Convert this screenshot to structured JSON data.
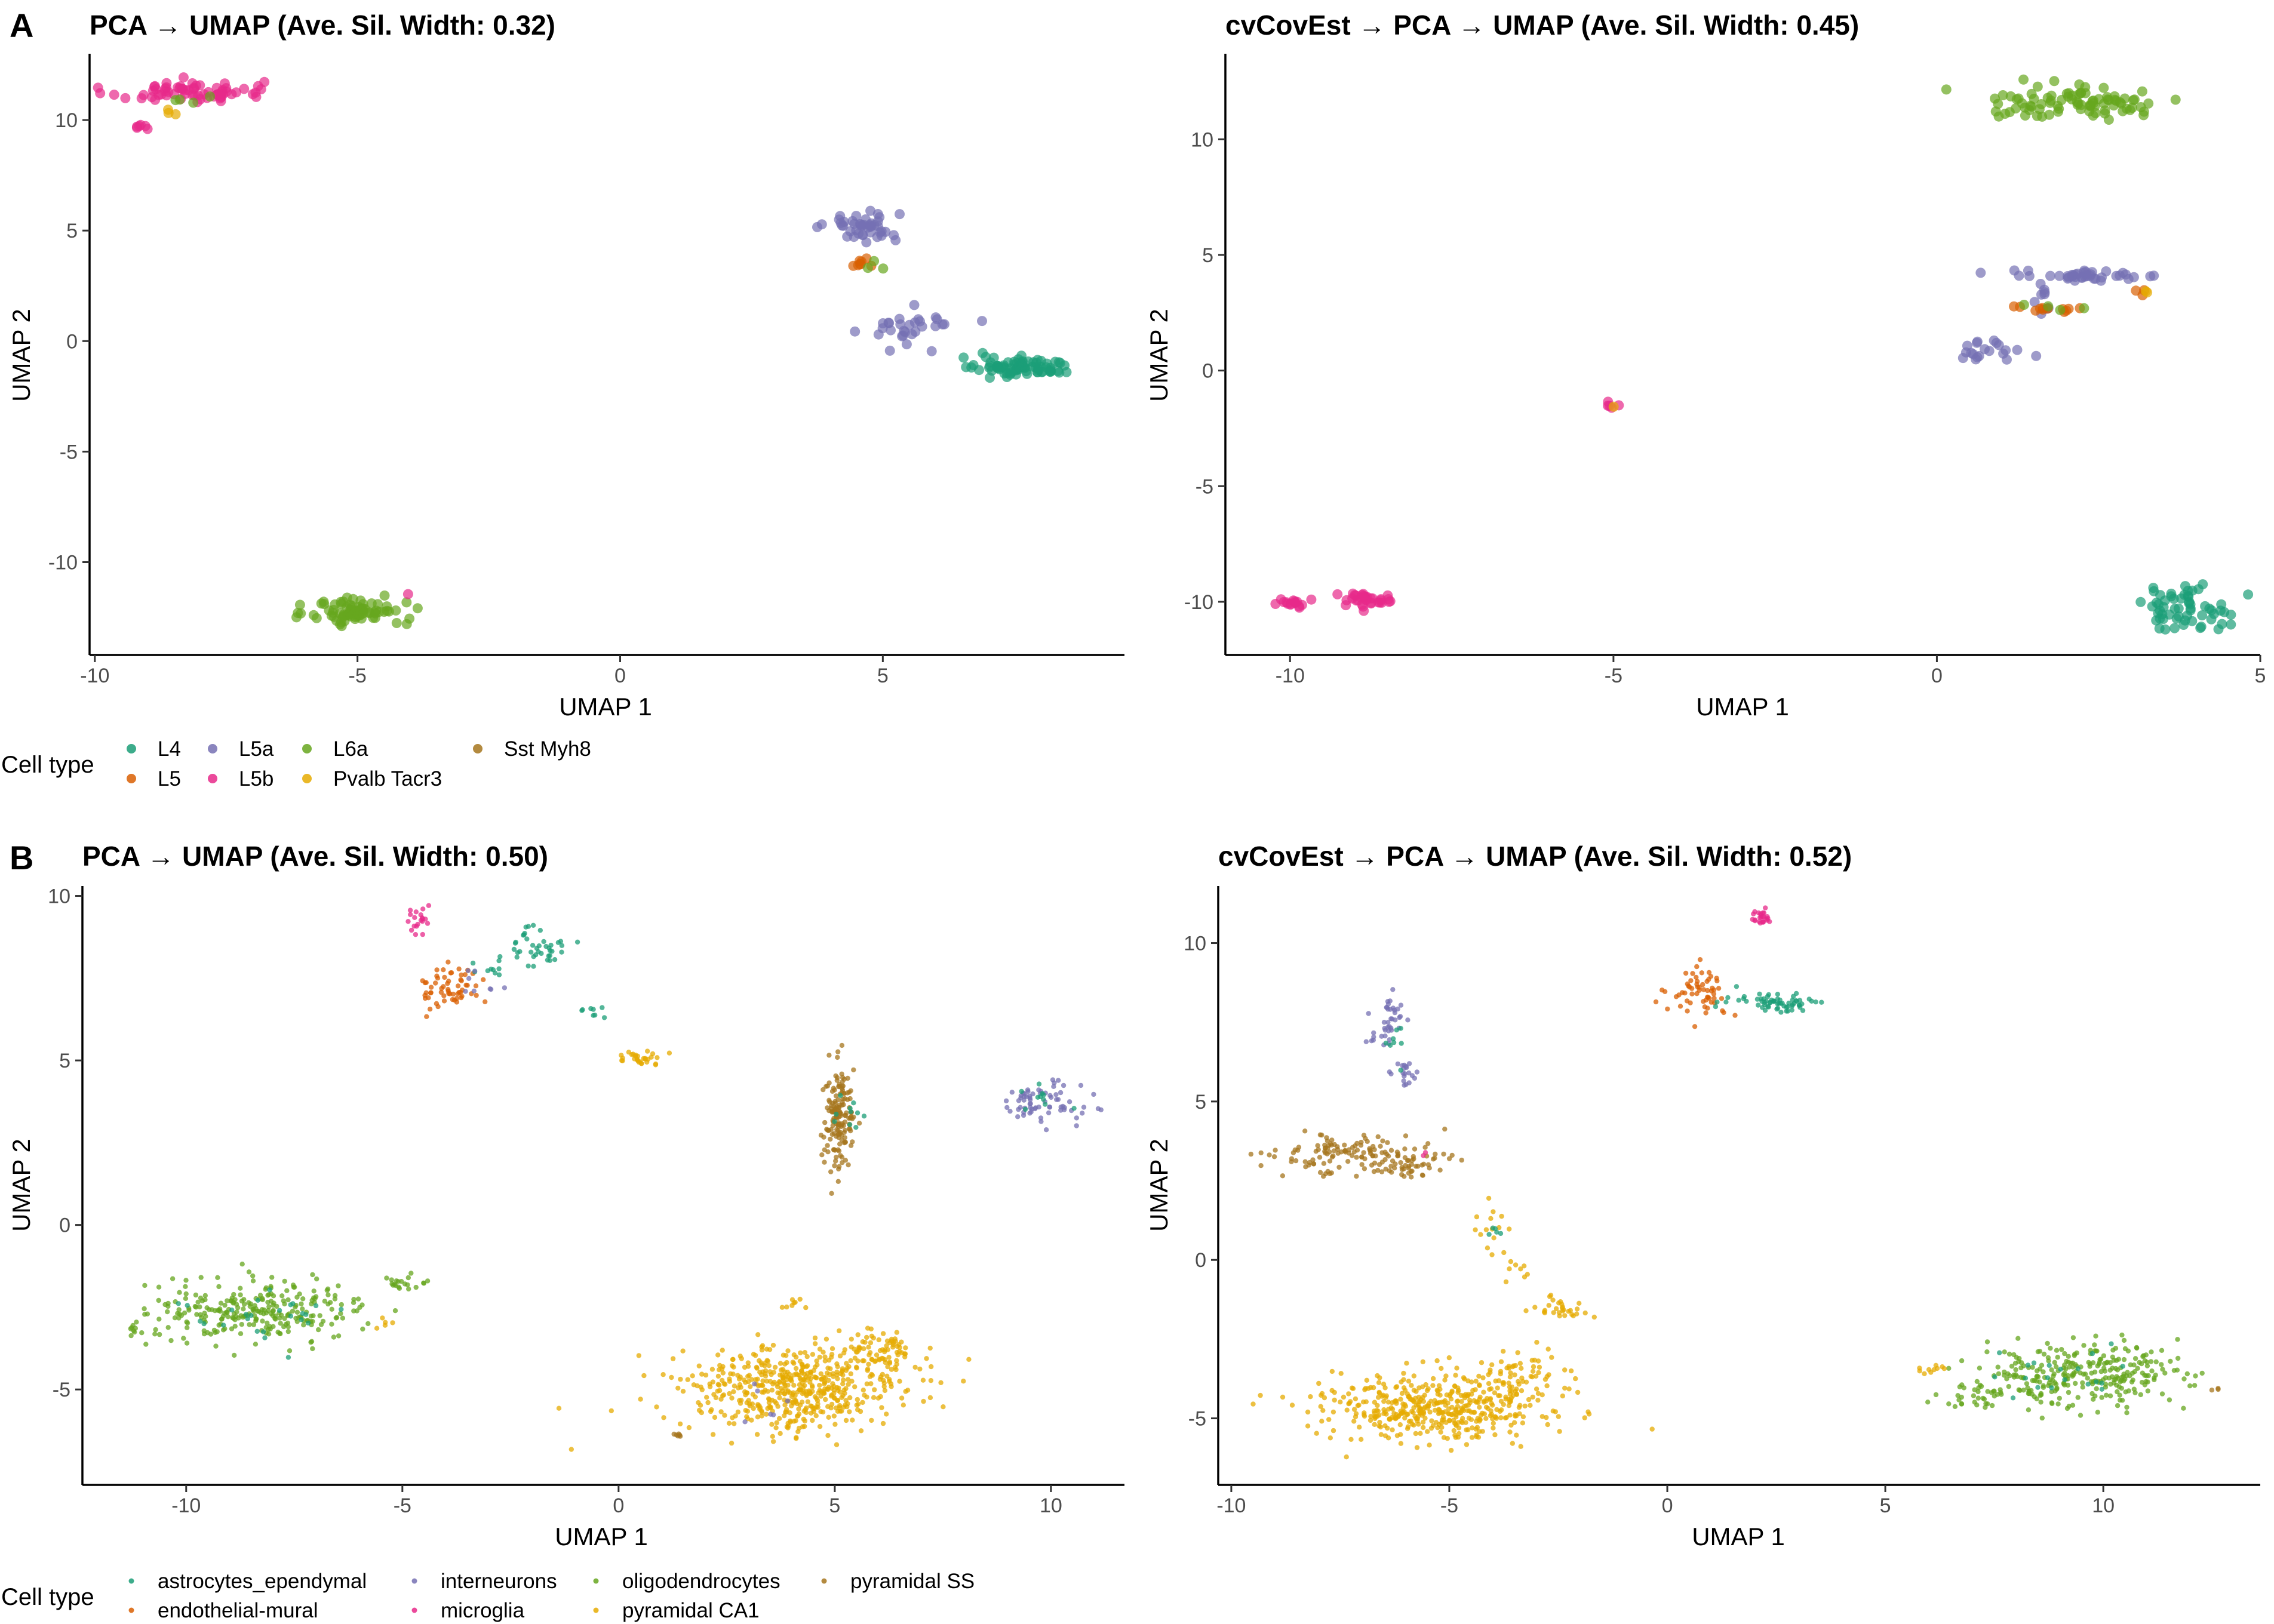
{
  "panels": [
    {
      "letter": "A",
      "legend_title": "Cell type",
      "legend": [
        {
          "label": "L4",
          "color": "#1B9E77"
        },
        {
          "label": "L5",
          "color": "#D95F02"
        },
        {
          "label": "L5a",
          "color": "#7570B3"
        },
        {
          "label": "L5b",
          "color": "#E7298A"
        },
        {
          "label": "L6a",
          "color": "#66A61E"
        },
        {
          "label": "Pvalb Tacr3",
          "color": "#E6AB02"
        },
        {
          "label": "Sst Myh8",
          "color": "#A6761D"
        }
      ]
    },
    {
      "letter": "B",
      "legend_title": "Cell type",
      "legend": [
        {
          "label": "astrocytes_ependymal",
          "color": "#1B9E77"
        },
        {
          "label": "endothelial-mural",
          "color": "#D95F02"
        },
        {
          "label": "interneurons",
          "color": "#7570B3"
        },
        {
          "label": "microglia",
          "color": "#E7298A"
        },
        {
          "label": "oligodendrocytes",
          "color": "#66A61E"
        },
        {
          "label": "pyramidal CA1",
          "color": "#E6AB02"
        },
        {
          "label": "pyramidal SS",
          "color": "#A6761D"
        }
      ]
    }
  ],
  "chart_data": [
    {
      "type": "scatter",
      "panel": "A",
      "title": "PCA → UMAP (Ave. Sil. Width: 0.32)",
      "xlabel": "UMAP 1",
      "ylabel": "UMAP 2",
      "xlim": [
        -10.1,
        9.6
      ],
      "ylim": [
        -14.2,
        13.0
      ],
      "xticks": [
        -10,
        -5,
        0,
        5
      ],
      "yticks": [
        10,
        5,
        0,
        -5,
        -10
      ],
      "xtick_labels": [
        "-10",
        "-5",
        "0",
        "5"
      ],
      "ytick_labels": [
        "10",
        "5",
        "0",
        "-5",
        "-10"
      ],
      "clusters": [
        {
          "type_index": 3,
          "cx": -8.3,
          "cy": 11.3,
          "sx": 0.75,
          "sy": 0.25,
          "n": 70
        },
        {
          "type_index": 3,
          "cx": -9.1,
          "cy": 9.7,
          "sx": 0.08,
          "sy": 0.1,
          "n": 6
        },
        {
          "type_index": 5,
          "cx": -8.6,
          "cy": 10.4,
          "sx": 0.12,
          "sy": 0.1,
          "n": 3
        },
        {
          "type_index": 4,
          "cx": -8.2,
          "cy": 10.9,
          "sx": 0.3,
          "sy": 0.15,
          "n": 4
        },
        {
          "type_index": 2,
          "cx": 4.6,
          "cy": 5.2,
          "sx": 0.35,
          "sy": 0.35,
          "n": 45
        },
        {
          "type_index": 1,
          "cx": 4.6,
          "cy": 3.6,
          "sx": 0.2,
          "sy": 0.2,
          "n": 8
        },
        {
          "type_index": 4,
          "cx": 4.9,
          "cy": 3.5,
          "sx": 0.15,
          "sy": 0.15,
          "n": 3
        },
        {
          "type_index": 2,
          "cx": 5.6,
          "cy": 0.6,
          "sx": 0.4,
          "sy": 0.4,
          "n": 30
        },
        {
          "type_index": 0,
          "cx": 7.7,
          "cy": -1.2,
          "sx": 0.45,
          "sy": 0.2,
          "n": 80
        },
        {
          "type_index": 0,
          "cx": 6.8,
          "cy": -0.7,
          "sx": 0.2,
          "sy": 0.1,
          "n": 4
        },
        {
          "type_index": 4,
          "cx": -5.0,
          "cy": -12.2,
          "sx": 0.45,
          "sy": 0.35,
          "n": 80
        },
        {
          "type_index": 3,
          "cx": -4.0,
          "cy": -11.5,
          "sx": 0.05,
          "sy": 0.05,
          "n": 1
        }
      ]
    },
    {
      "type": "scatter",
      "panel": "A",
      "title": "cvCovEst → PCA → UMAP (Ave. Sil. Width: 0.45)",
      "xlabel": "UMAP 1",
      "ylabel": "UMAP 2",
      "xlim": [
        -11.0,
        5.0
      ],
      "ylim": [
        -12.3,
        13.7
      ],
      "xticks": [
        -10,
        -5,
        0,
        5
      ],
      "yticks": [
        10,
        5,
        0,
        -5,
        -10
      ],
      "xtick_labels": [
        "-10",
        "-5",
        "0",
        "5"
      ],
      "ytick_labels": [
        "10",
        "5",
        "0",
        "-5",
        "-10"
      ],
      "clusters": [
        {
          "type_index": 4,
          "cx": 2.2,
          "cy": 11.6,
          "sx": 0.8,
          "sy": 0.35,
          "n": 90
        },
        {
          "type_index": 2,
          "cx": 2.3,
          "cy": 4.1,
          "sx": 0.6,
          "sy": 0.12,
          "n": 40
        },
        {
          "type_index": 2,
          "cx": 1.6,
          "cy": 3.2,
          "sx": 0.12,
          "sy": 0.4,
          "n": 10
        },
        {
          "type_index": 1,
          "cx": 1.9,
          "cy": 2.7,
          "sx": 0.3,
          "sy": 0.1,
          "n": 12
        },
        {
          "type_index": 4,
          "cx": 1.9,
          "cy": 2.7,
          "sx": 0.3,
          "sy": 0.08,
          "n": 4
        },
        {
          "type_index": 1,
          "cx": 3.1,
          "cy": 3.3,
          "sx": 0.08,
          "sy": 0.1,
          "n": 3
        },
        {
          "type_index": 5,
          "cx": 3.2,
          "cy": 3.4,
          "sx": 0.05,
          "sy": 0.05,
          "n": 2
        },
        {
          "type_index": 2,
          "cx": 0.8,
          "cy": 0.9,
          "sx": 0.25,
          "sy": 0.3,
          "n": 20
        },
        {
          "type_index": 3,
          "cx": -5.05,
          "cy": -1.5,
          "sx": 0.05,
          "sy": 0.05,
          "n": 5
        },
        {
          "type_index": 5,
          "cx": -5.0,
          "cy": -1.55,
          "sx": 0.02,
          "sy": 0.02,
          "n": 1
        },
        {
          "type_index": 3,
          "cx": -10.0,
          "cy": -10.1,
          "sx": 0.15,
          "sy": 0.12,
          "n": 15
        },
        {
          "type_index": 3,
          "cx": -8.8,
          "cy": -9.9,
          "sx": 0.3,
          "sy": 0.15,
          "n": 35
        },
        {
          "type_index": 0,
          "cx": 3.8,
          "cy": -10.2,
          "sx": 0.35,
          "sy": 0.5,
          "n": 60
        }
      ]
    },
    {
      "type": "scatter",
      "panel": "B",
      "title": "PCA → UMAP (Ave. Sil. Width: 0.50)",
      "xlabel": "UMAP 1",
      "ylabel": "UMAP 2",
      "xlim": [
        -12.4,
        11.7
      ],
      "ylim": [
        -7.9,
        10.3
      ],
      "xticks": [
        -10,
        -5,
        0,
        5,
        10
      ],
      "yticks": [
        10,
        5,
        0,
        -5
      ],
      "xtick_labels": [
        "-10",
        "-5",
        "0",
        "5",
        "10"
      ],
      "ytick_labels": [
        "10",
        "5",
        "0",
        "-5"
      ],
      "clusters": [
        {
          "type_index": 3,
          "cx": -4.6,
          "cy": 9.2,
          "sx": 0.15,
          "sy": 0.2,
          "n": 20
        },
        {
          "type_index": 1,
          "cx": -3.9,
          "cy": 7.2,
          "sx": 0.35,
          "sy": 0.35,
          "n": 60
        },
        {
          "type_index": 0,
          "cx": -1.8,
          "cy": 8.5,
          "sx": 0.3,
          "sy": 0.35,
          "n": 40
        },
        {
          "type_index": 0,
          "cx": -3.0,
          "cy": 7.8,
          "sx": 0.3,
          "sy": 0.2,
          "n": 10
        },
        {
          "type_index": 2,
          "cx": -3.1,
          "cy": 7.5,
          "sx": 0.4,
          "sy": 0.3,
          "n": 8
        },
        {
          "type_index": 0,
          "cx": -0.6,
          "cy": 6.4,
          "sx": 0.25,
          "sy": 0.1,
          "n": 8
        },
        {
          "type_index": 5,
          "cx": 0.5,
          "cy": 5.1,
          "sx": 0.3,
          "sy": 0.12,
          "n": 30
        },
        {
          "type_index": 6,
          "cx": 5.1,
          "cy": 3.2,
          "sx": 0.18,
          "sy": 0.8,
          "n": 160
        },
        {
          "type_index": 0,
          "cx": 5.4,
          "cy": 3.5,
          "sx": 0.2,
          "sy": 0.5,
          "n": 10
        },
        {
          "type_index": 2,
          "cx": 9.7,
          "cy": 3.7,
          "sx": 0.5,
          "sy": 0.3,
          "n": 70
        },
        {
          "type_index": 0,
          "cx": 9.7,
          "cy": 3.7,
          "sx": 0.4,
          "sy": 0.3,
          "n": 10
        },
        {
          "type_index": 4,
          "cx": -8.3,
          "cy": -2.6,
          "sx": 1.2,
          "sy": 0.45,
          "n": 280
        },
        {
          "type_index": 4,
          "cx": -5.0,
          "cy": -1.8,
          "sx": 0.3,
          "sy": 0.1,
          "n": 20
        },
        {
          "type_index": 4,
          "cx": -11.2,
          "cy": -3.2,
          "sx": 0.1,
          "sy": 0.15,
          "n": 8
        },
        {
          "type_index": 0,
          "cx": -8.2,
          "cy": -2.8,
          "sx": 1.0,
          "sy": 0.4,
          "n": 25
        },
        {
          "type_index": 5,
          "cx": -5.3,
          "cy": -3.0,
          "sx": 0.15,
          "sy": 0.1,
          "n": 5
        },
        {
          "type_index": 5,
          "cx": 4.0,
          "cy": -5.0,
          "sx": 1.3,
          "sy": 0.65,
          "n": 520
        },
        {
          "type_index": 5,
          "cx": 5.9,
          "cy": -3.9,
          "sx": 0.5,
          "sy": 0.35,
          "n": 90
        },
        {
          "type_index": 5,
          "cx": 4.1,
          "cy": -2.4,
          "sx": 0.15,
          "sy": 0.08,
          "n": 8
        },
        {
          "type_index": 6,
          "cx": 1.3,
          "cy": -6.4,
          "sx": 0.12,
          "sy": 0.05,
          "n": 6
        },
        {
          "type_index": 2,
          "cx": 3.5,
          "cy": -5.5,
          "sx": 0.5,
          "sy": 0.4,
          "n": 6
        }
      ]
    },
    {
      "type": "scatter",
      "panel": "B",
      "title": "cvCovEst → PCA → UMAP (Ave. Sil. Width: 0.52)",
      "xlabel": "UMAP 1",
      "ylabel": "UMAP 2",
      "xlim": [
        -10.3,
        13.6
      ],
      "ylim": [
        -7.1,
        11.8
      ],
      "xticks": [
        -10,
        -5,
        0,
        5,
        10
      ],
      "yticks": [
        10,
        5,
        0,
        -5
      ],
      "xtick_labels": [
        "-10",
        "-5",
        "0",
        "5",
        "10"
      ],
      "ytick_labels": [
        "10",
        "5",
        "0",
        "-5"
      ],
      "clusters": [
        {
          "type_index": 3,
          "cx": 2.1,
          "cy": 10.8,
          "sx": 0.15,
          "sy": 0.12,
          "n": 25
        },
        {
          "type_index": 1,
          "cx": 0.8,
          "cy": 8.5,
          "sx": 0.35,
          "sy": 0.35,
          "n": 60
        },
        {
          "type_index": 0,
          "cx": 2.6,
          "cy": 8.1,
          "sx": 0.4,
          "sy": 0.15,
          "n": 55
        },
        {
          "type_index": 0,
          "cx": 1.5,
          "cy": 8.3,
          "sx": 0.4,
          "sy": 0.2,
          "n": 10
        },
        {
          "type_index": 2,
          "cx": -6.4,
          "cy": 7.4,
          "sx": 0.2,
          "sy": 0.4,
          "n": 40
        },
        {
          "type_index": 2,
          "cx": -6.0,
          "cy": 5.9,
          "sx": 0.15,
          "sy": 0.3,
          "n": 20
        },
        {
          "type_index": 0,
          "cx": -6.2,
          "cy": 7.0,
          "sx": 0.2,
          "sy": 0.5,
          "n": 8
        },
        {
          "type_index": 6,
          "cx": -7.0,
          "cy": 3.3,
          "sx": 1.0,
          "sy": 0.3,
          "n": 140
        },
        {
          "type_index": 6,
          "cx": -6.0,
          "cy": 2.9,
          "sx": 0.25,
          "sy": 0.15,
          "n": 25
        },
        {
          "type_index": 3,
          "cx": -5.6,
          "cy": 3.3,
          "sx": 0.05,
          "sy": 0.05,
          "n": 2
        },
        {
          "type_index": 5,
          "cx": -4.1,
          "cy": 1.0,
          "sx": 0.2,
          "sy": 0.45,
          "n": 15
        },
        {
          "type_index": 5,
          "cx": -3.5,
          "cy": -0.2,
          "sx": 0.15,
          "sy": 0.2,
          "n": 8
        },
        {
          "type_index": 0,
          "cx": -4.0,
          "cy": 0.8,
          "sx": 0.15,
          "sy": 0.3,
          "n": 5
        },
        {
          "type_index": 5,
          "cx": -2.5,
          "cy": -1.5,
          "sx": 0.35,
          "sy": 0.2,
          "n": 30
        },
        {
          "type_index": 5,
          "cx": -5.2,
          "cy": -4.6,
          "sx": 1.3,
          "sy": 0.55,
          "n": 480
        },
        {
          "type_index": 5,
          "cx": -3.5,
          "cy": -3.5,
          "sx": 0.4,
          "sy": 0.3,
          "n": 40
        },
        {
          "type_index": 4,
          "cx": 9.5,
          "cy": -3.6,
          "sx": 1.1,
          "sy": 0.5,
          "n": 300
        },
        {
          "type_index": 4,
          "cx": 7.0,
          "cy": -4.3,
          "sx": 0.35,
          "sy": 0.2,
          "n": 30
        },
        {
          "type_index": 5,
          "cx": 6.0,
          "cy": -3.5,
          "sx": 0.25,
          "sy": 0.08,
          "n": 10
        },
        {
          "type_index": 6,
          "cx": 12.6,
          "cy": -4.1,
          "sx": 0.08,
          "sy": 0.04,
          "n": 3
        },
        {
          "type_index": 0,
          "cx": 9.2,
          "cy": -3.7,
          "sx": 0.9,
          "sy": 0.4,
          "n": 20
        }
      ]
    }
  ]
}
